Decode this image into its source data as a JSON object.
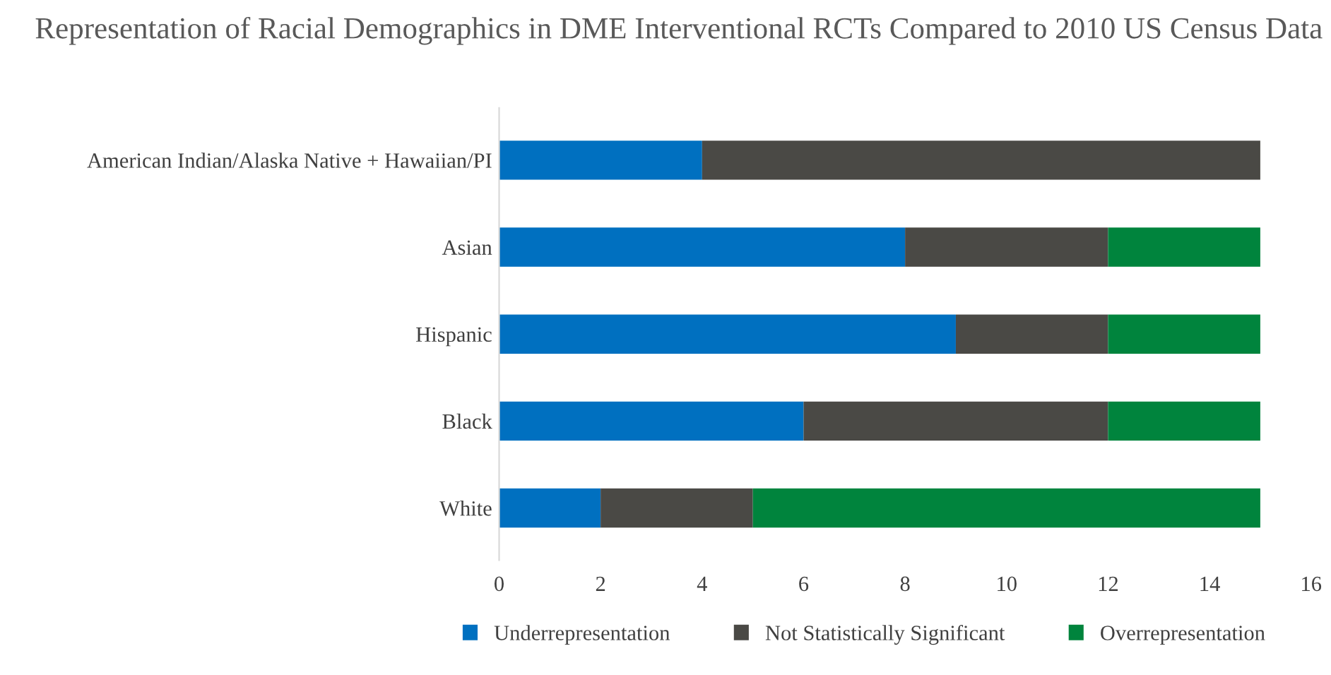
{
  "chart_data": {
    "type": "bar",
    "orientation": "horizontal",
    "stacked": true,
    "title": "Representation of Racial Demographics in DME Interventional RCTs Compared to 2010 US Census Data",
    "categories": [
      "American Indian/Alaska Native + Hawaiian/PI",
      "Asian",
      "Hispanic",
      "Black",
      "White"
    ],
    "series": [
      {
        "name": "Underrepresentation",
        "color": "#0070c0",
        "values": [
          4,
          8,
          9,
          6,
          2
        ]
      },
      {
        "name": "Not Statistically Significant",
        "color": "#4a4945",
        "values": [
          11,
          4,
          3,
          6,
          3
        ]
      },
      {
        "name": "Overrepresentation",
        "color": "#00843d",
        "values": [
          0,
          3,
          3,
          3,
          10
        ]
      }
    ],
    "xlim": [
      0,
      16
    ],
    "xticks": [
      0,
      2,
      4,
      6,
      8,
      10,
      12,
      14,
      16
    ],
    "grid": false,
    "legend": "bottom"
  }
}
